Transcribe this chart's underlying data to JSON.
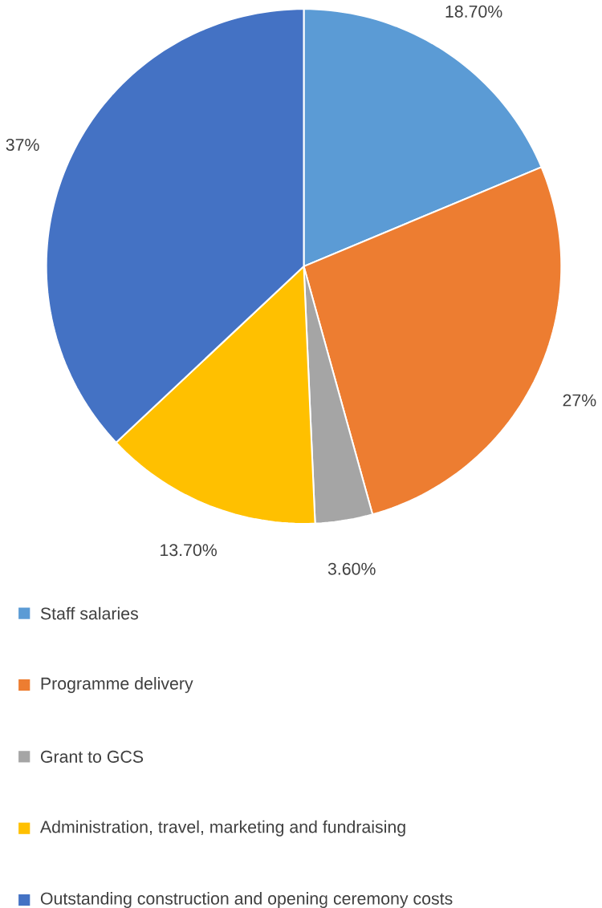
{
  "chart_data": {
    "type": "pie",
    "categories": [
      "Staff salaries",
      "Programme delivery",
      "Grant to GCS",
      "Administration, travel, marketing and fundraising",
      "Outstanding construction and opening ceremony costs"
    ],
    "values": [
      18.7,
      27,
      3.6,
      13.7,
      37
    ],
    "value_labels": [
      "18.70%",
      "27%",
      "3.60%",
      "13.70%",
      "37%"
    ],
    "colors": [
      "#5b9bd5",
      "#ed7d31",
      "#a5a5a5",
      "#ffc000",
      "#4472c4"
    ],
    "legend": "bottom"
  }
}
